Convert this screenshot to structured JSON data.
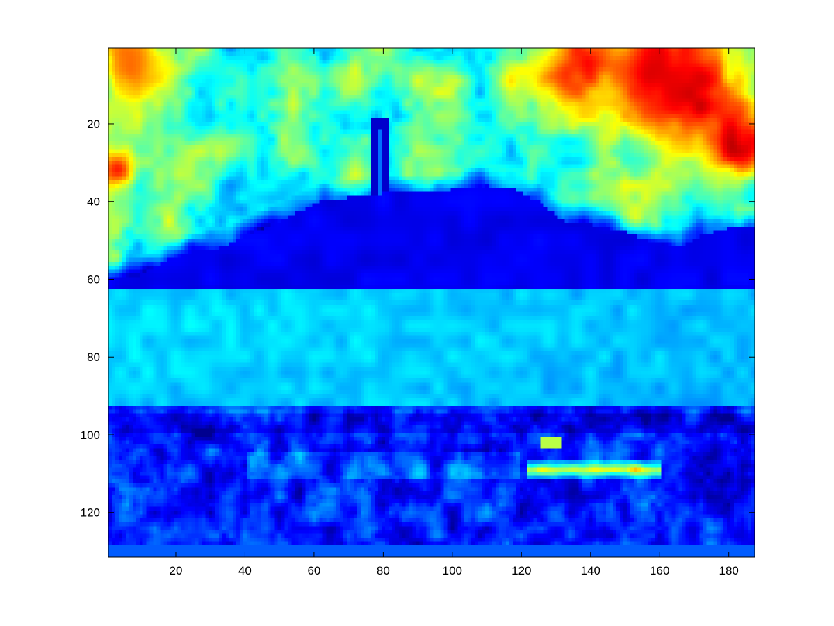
{
  "chart_data": {
    "type": "heatmap",
    "title": "",
    "xlabel": "",
    "ylabel": "",
    "colormap": "jet",
    "colormap_stops": [
      "#00008f",
      "#0000ff",
      "#00ffff",
      "#ffff00",
      "#ff0000",
      "#800000"
    ],
    "image_size": {
      "columns": 187,
      "rows": 131
    },
    "xlim": [
      0.5,
      187.5
    ],
    "ylim": [
      0.5,
      131.5
    ],
    "y_direction": "reversed",
    "grid": false,
    "xticks": [
      20,
      40,
      60,
      80,
      100,
      120,
      140,
      160,
      180
    ],
    "yticks": [
      20,
      40,
      60,
      80,
      100,
      120
    ],
    "value_range": [
      0,
      1
    ],
    "features": {
      "horizon_row": 61,
      "water_end_row": 93,
      "tower_column": 79,
      "tower_top_row": 19,
      "hill_profile": [
        [
          1,
          60
        ],
        [
          10,
          59
        ],
        [
          18,
          55
        ],
        [
          25,
          53
        ],
        [
          33,
          52
        ],
        [
          40,
          49
        ],
        [
          48,
          46
        ],
        [
          55,
          43
        ],
        [
          62,
          40
        ],
        [
          70,
          39
        ],
        [
          80,
          38
        ],
        [
          90,
          38
        ],
        [
          100,
          37
        ],
        [
          110,
          36
        ],
        [
          118,
          37
        ],
        [
          125,
          40
        ],
        [
          132,
          45
        ],
        [
          140,
          46
        ],
        [
          150,
          48
        ],
        [
          160,
          51
        ],
        [
          166,
          52
        ],
        [
          172,
          49
        ],
        [
          180,
          47
        ],
        [
          187,
          47
        ]
      ],
      "hot_regions": [
        {
          "col": 183,
          "row": 25,
          "radius": 7,
          "level": 0.95
        },
        {
          "col": 170,
          "row": 12,
          "radius": 10,
          "level": 0.9
        },
        {
          "col": 160,
          "row": 6,
          "radius": 10,
          "level": 0.9
        },
        {
          "col": 137,
          "row": 5,
          "radius": 9,
          "level": 0.85
        },
        {
          "col": 6,
          "row": 4,
          "radius": 8,
          "level": 0.75
        },
        {
          "col": 3,
          "row": 32,
          "radius": 4,
          "level": 0.8
        }
      ],
      "bright_shore_patch": {
        "col_start": 122,
        "col_end": 160,
        "row": 109,
        "level": 0.7
      }
    }
  }
}
